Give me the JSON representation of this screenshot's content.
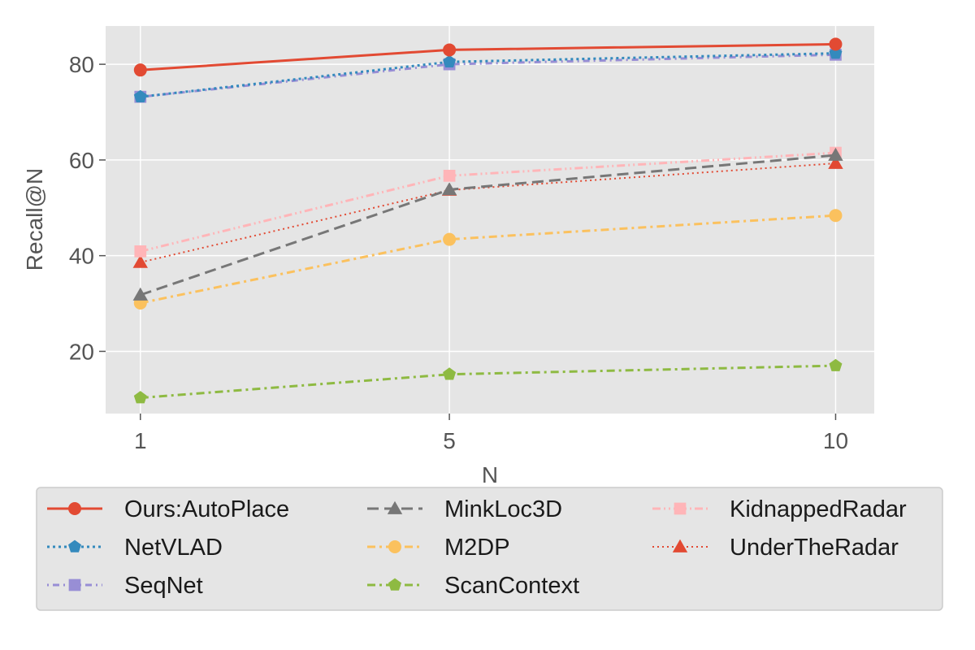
{
  "chart_data": {
    "type": "line",
    "x": [
      1,
      5,
      10
    ],
    "xticks": [
      "1",
      "5",
      "10"
    ],
    "yticks": [
      "20",
      "40",
      "60",
      "80"
    ],
    "xlabel": "N",
    "ylabel": "Recall@N",
    "xlim": [
      0.55,
      10.5
    ],
    "ylim": [
      7,
      88
    ],
    "grid": true,
    "legend_position": "bottom",
    "series": [
      {
        "name": "Ours:AutoPlace",
        "values": [
          78.8,
          83.0,
          84.2
        ],
        "color": "#E24A33",
        "line": "solid",
        "marker": "circle"
      },
      {
        "name": "NetVLAD",
        "values": [
          73.2,
          80.5,
          82.3
        ],
        "color": "#348ABD",
        "line": "dotted",
        "marker": "pentagon"
      },
      {
        "name": "SeqNet",
        "values": [
          73.2,
          80.0,
          82.0
        ],
        "color": "#988ED5",
        "line": "dashdot-dense",
        "marker": "square"
      },
      {
        "name": "MinkLoc3D",
        "values": [
          31.8,
          53.8,
          61.0
        ],
        "color": "#777777",
        "line": "dashed",
        "marker": "triangle"
      },
      {
        "name": "M2DP",
        "values": [
          30.1,
          43.4,
          48.4
        ],
        "color": "#FBC15E",
        "line": "dashdot",
        "marker": "circle"
      },
      {
        "name": "ScanContext",
        "values": [
          10.3,
          15.2,
          17.0
        ],
        "color": "#8EBA42",
        "line": "dashdot-long",
        "marker": "pentagon"
      },
      {
        "name": "KidnappedRadar",
        "values": [
          40.9,
          56.7,
          61.5
        ],
        "color": "#FFB5B8",
        "line": "dashdotdot",
        "marker": "square"
      },
      {
        "name": "UnderTheRadar",
        "values": [
          38.6,
          53.7,
          59.3
        ],
        "color": "#E24A33",
        "line": "dotted-fine",
        "marker": "triangle"
      }
    ]
  }
}
